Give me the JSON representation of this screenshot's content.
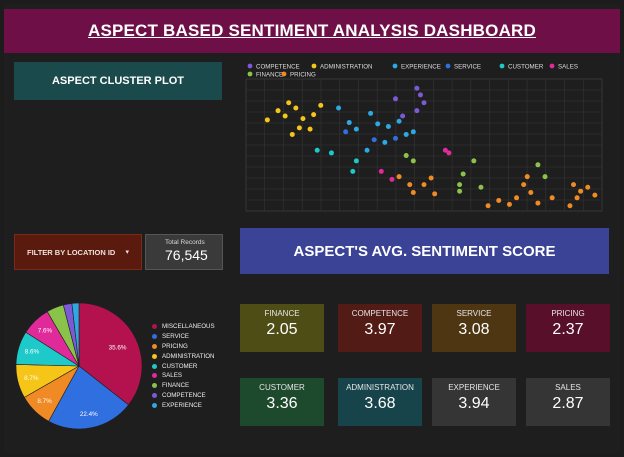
{
  "header": {
    "title": "ASPECT BASED SENTIMENT ANALYSIS DASHBOARD"
  },
  "cluster_button": {
    "label": "ASPECT CLUSTER PLOT"
  },
  "filter": {
    "label": "FILTER BY LOCATION ID",
    "caret": "▾"
  },
  "total": {
    "label": "Total Records",
    "value": "76,545"
  },
  "score_banner": {
    "title": "ASPECT'S AVG. SENTIMENT SCORE"
  },
  "colors": {
    "competence": "#7c5ad6",
    "administration": "#f5c518",
    "experience": "#2da8e0",
    "service": "#2f6fdf",
    "customer": "#1ec9c9",
    "sales": "#e02a9a",
    "finance": "#8bc34a",
    "pricing": "#f08a24",
    "miscellaneous": "#b3124f"
  },
  "cards": [
    {
      "title": "FINANCE",
      "value": "2.05",
      "bg": "#4f4d16"
    },
    {
      "title": "COMPETENCE",
      "value": "3.97",
      "bg": "#531b15"
    },
    {
      "title": "SERVICE",
      "value": "3.08",
      "bg": "#4f3612"
    },
    {
      "title": "PRICING",
      "value": "2.37",
      "bg": "#570f2a"
    },
    {
      "title": "CUSTOMER",
      "value": "3.36",
      "bg": "#1d4a2c"
    },
    {
      "title": "ADMINISTRATION",
      "value": "3.68",
      "bg": "#17444b"
    },
    {
      "title": "EXPERIENCE",
      "value": "3.94",
      "bg": "#353535"
    },
    {
      "title": "SALES",
      "value": "2.87",
      "bg": "#353535"
    }
  ],
  "chart_data": [
    {
      "type": "scatter",
      "legend_position": "top",
      "grid": true,
      "xlim": [
        0,
        1
      ],
      "ylim": [
        0,
        1
      ],
      "series": [
        {
          "name": "COMPETENCE",
          "color": "#7c5ad6",
          "points": [
            [
              0.42,
              0.85
            ],
            [
              0.48,
              0.93
            ],
            [
              0.49,
              0.88
            ],
            [
              0.5,
              0.82
            ],
            [
              0.48,
              0.76
            ],
            [
              0.44,
              0.72
            ]
          ]
        },
        {
          "name": "ADMINISTRATION",
          "color": "#f5c518",
          "points": [
            [
              0.06,
              0.69
            ],
            [
              0.09,
              0.76
            ],
            [
              0.11,
              0.72
            ],
            [
              0.12,
              0.82
            ],
            [
              0.14,
              0.78
            ],
            [
              0.16,
              0.7
            ],
            [
              0.19,
              0.73
            ],
            [
              0.15,
              0.63
            ],
            [
              0.13,
              0.58
            ],
            [
              0.18,
              0.62
            ],
            [
              0.21,
              0.8
            ]
          ]
        },
        {
          "name": "EXPERIENCE",
          "color": "#2da8e0",
          "points": [
            [
              0.26,
              0.78
            ],
            [
              0.29,
              0.67
            ],
            [
              0.31,
              0.62
            ],
            [
              0.35,
              0.74
            ],
            [
              0.37,
              0.66
            ],
            [
              0.4,
              0.64
            ],
            [
              0.43,
              0.68
            ],
            [
              0.45,
              0.58
            ],
            [
              0.39,
              0.52
            ],
            [
              0.34,
              0.46
            ],
            [
              0.47,
              0.6
            ]
          ]
        },
        {
          "name": "SERVICE",
          "color": "#2f6fdf",
          "points": [
            [
              0.28,
              0.6
            ],
            [
              0.36,
              0.54
            ],
            [
              0.42,
              0.55
            ]
          ]
        },
        {
          "name": "CUSTOMER",
          "color": "#1ec9c9",
          "points": [
            [
              0.2,
              0.46
            ],
            [
              0.24,
              0.44
            ],
            [
              0.31,
              0.38
            ],
            [
              0.3,
              0.3
            ]
          ]
        },
        {
          "name": "SALES",
          "color": "#e02a9a",
          "points": [
            [
              0.38,
              0.3
            ],
            [
              0.41,
              0.24
            ],
            [
              0.56,
              0.46
            ],
            [
              0.57,
              0.44
            ]
          ]
        },
        {
          "name": "FINANCE",
          "color": "#8bc34a",
          "points": [
            [
              0.45,
              0.42
            ],
            [
              0.47,
              0.38
            ],
            [
              0.64,
              0.38
            ],
            [
              0.61,
              0.28
            ],
            [
              0.6,
              0.2
            ],
            [
              0.6,
              0.15
            ],
            [
              0.66,
              0.18
            ],
            [
              0.82,
              0.35
            ],
            [
              0.84,
              0.26
            ]
          ]
        },
        {
          "name": "PRICING",
          "color": "#f08a24",
          "points": [
            [
              0.43,
              0.26
            ],
            [
              0.46,
              0.2
            ],
            [
              0.47,
              0.14
            ],
            [
              0.5,
              0.2
            ],
            [
              0.52,
              0.25
            ],
            [
              0.53,
              0.13
            ],
            [
              0.68,
              0.04
            ],
            [
              0.71,
              0.08
            ],
            [
              0.74,
              0.05
            ],
            [
              0.76,
              0.1
            ],
            [
              0.78,
              0.2
            ],
            [
              0.79,
              0.26
            ],
            [
              0.8,
              0.14
            ],
            [
              0.82,
              0.06
            ],
            [
              0.86,
              0.1
            ],
            [
              0.91,
              0.04
            ],
            [
              0.93,
              0.1
            ],
            [
              0.94,
              0.15
            ],
            [
              0.96,
              0.18
            ],
            [
              0.98,
              0.12
            ],
            [
              0.92,
              0.2
            ]
          ]
        }
      ]
    },
    {
      "type": "pie",
      "categories": [
        "MISCELLANEOUS",
        "SERVICE",
        "PRICING",
        "ADMINISTRATION",
        "CUSTOMER",
        "SALES",
        "FINANCE",
        "COMPETENCE",
        "EXPERIENCE"
      ],
      "values": [
        35.6,
        22.4,
        8.7,
        8.7,
        8.6,
        7.6,
        4.4,
        2.2,
        1.8
      ],
      "data_labels": [
        "35.6%",
        "22.4%",
        "8.7%",
        "8.7%",
        "8.6%",
        "7.6%",
        "",
        "",
        ""
      ],
      "legend_position": "right"
    }
  ]
}
